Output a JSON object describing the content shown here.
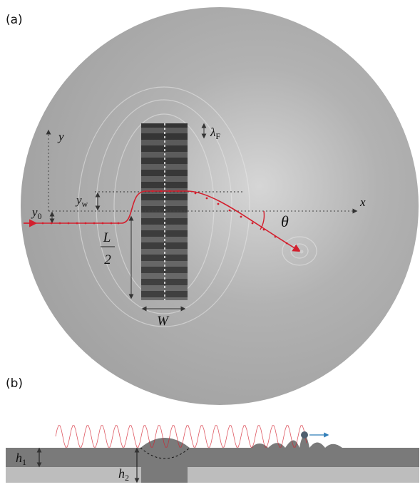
{
  "panels": {
    "a": "(a)",
    "b": "(b)"
  },
  "labels": {
    "y_axis": "y",
    "x_axis": "x",
    "lambda": "λ",
    "lambda_sub": "F",
    "y_w": "y",
    "y_w_sub": "w",
    "y_0": "y",
    "y_0_sub": "0",
    "L": "L",
    "two": "2",
    "theta": "θ",
    "W": "W",
    "h1": "h",
    "h1_sub": "1",
    "h2": "h",
    "h2_sub": "2"
  },
  "colors": {
    "background": "#ffffff",
    "tank": "#a9a9a9",
    "trajectory": "#d3202e",
    "droplet_arrow": "#2f7db8",
    "droplet": "#4f5f6f",
    "layer_top": "#7a7a7a",
    "layer_bottom": "#bdbdbd",
    "guides": "#333333"
  }
}
